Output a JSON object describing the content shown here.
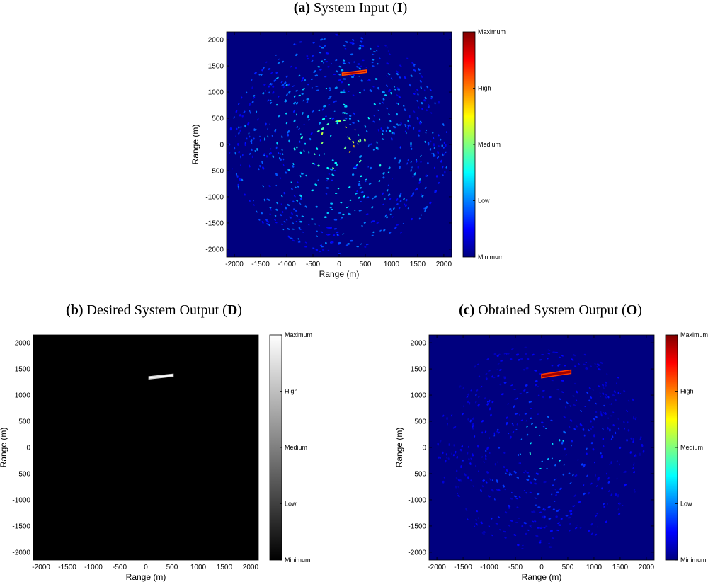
{
  "colors": {
    "jet": [
      "#00007f",
      "#0000ff",
      "#007fff",
      "#00ffff",
      "#7fff7f",
      "#ffff00",
      "#ff7f00",
      "#ff0000",
      "#7f0000"
    ],
    "gray": [
      "#000000",
      "#ffffff"
    ],
    "jet_background": "#00007f",
    "gray_background": "#000000"
  },
  "chart_data": [
    {
      "id": "a",
      "type": "heatmap",
      "title_letter": "(a)",
      "title_text": "System Input",
      "title_symbol": "I",
      "xlabel": "Range (m)",
      "ylabel": "Range (m)",
      "xlim": [
        -2150,
        2150
      ],
      "ylim": [
        -2150,
        2150
      ],
      "x_ticks": [
        -2000,
        -1500,
        -1000,
        -500,
        0,
        500,
        1000,
        1500,
        2000
      ],
      "y_ticks": [
        -2000,
        -1500,
        -1000,
        -500,
        0,
        500,
        1000,
        1500,
        2000
      ],
      "colormap": "jet",
      "colorbar_labels": [
        "Maximum",
        "High",
        "Medium",
        "Low",
        "Minimum"
      ],
      "colorbar_levels": [
        1.0,
        0.75,
        0.5,
        0.25,
        0.0
      ],
      "features": {
        "scan_radius": 2100,
        "blind_center_radius": 120,
        "clutter_level": 0.35,
        "target": {
          "x1": 60,
          "y1": 1320,
          "x2": 520,
          "y2": 1420,
          "level": 0.95
        }
      }
    },
    {
      "id": "b",
      "type": "heatmap",
      "title_letter": "(b)",
      "title_text": "Desired System Output",
      "title_symbol": "D",
      "xlabel": "Range (m)",
      "ylabel": "Range (m)",
      "xlim": [
        -2150,
        2150
      ],
      "ylim": [
        -2150,
        2150
      ],
      "x_ticks": [
        -2000,
        -1500,
        -1000,
        -500,
        0,
        500,
        1000,
        1500,
        2000
      ],
      "y_ticks": [
        -2000,
        -1500,
        -1000,
        -500,
        0,
        500,
        1000,
        1500,
        2000
      ],
      "colormap": "gray",
      "colorbar_labels": [
        "Maximum",
        "High",
        "Medium",
        "Low",
        "Minimum"
      ],
      "colorbar_levels": [
        1.0,
        0.75,
        0.5,
        0.25,
        0.0
      ],
      "features": {
        "target": {
          "x1": 60,
          "y1": 1310,
          "x2": 520,
          "y2": 1400,
          "level": 1.0
        }
      }
    },
    {
      "id": "c",
      "type": "heatmap",
      "title_letter": "(c)",
      "title_text": "Obtained System Output",
      "title_symbol": "O",
      "xlabel": "Range (m)",
      "ylabel": "Range (m)",
      "xlim": [
        -2150,
        2150
      ],
      "ylim": [
        -2150,
        2150
      ],
      "x_ticks": [
        -2000,
        -1500,
        -1000,
        -500,
        0,
        500,
        1000,
        1500,
        2000
      ],
      "y_ticks": [
        -2000,
        -1500,
        -1000,
        -500,
        0,
        500,
        1000,
        1500,
        2000
      ],
      "colormap": "jet",
      "colorbar_labels": [
        "Maximum",
        "High",
        "Medium",
        "Low",
        "Minimum"
      ],
      "colorbar_levels": [
        1.0,
        0.75,
        0.5,
        0.25,
        0.0
      ],
      "features": {
        "scan_radius": 2000,
        "blind_center_radius": 120,
        "clutter_level": 0.18,
        "target": {
          "x1": 0,
          "y1": 1330,
          "x2": 560,
          "y2": 1480,
          "level": 0.97
        }
      }
    }
  ]
}
